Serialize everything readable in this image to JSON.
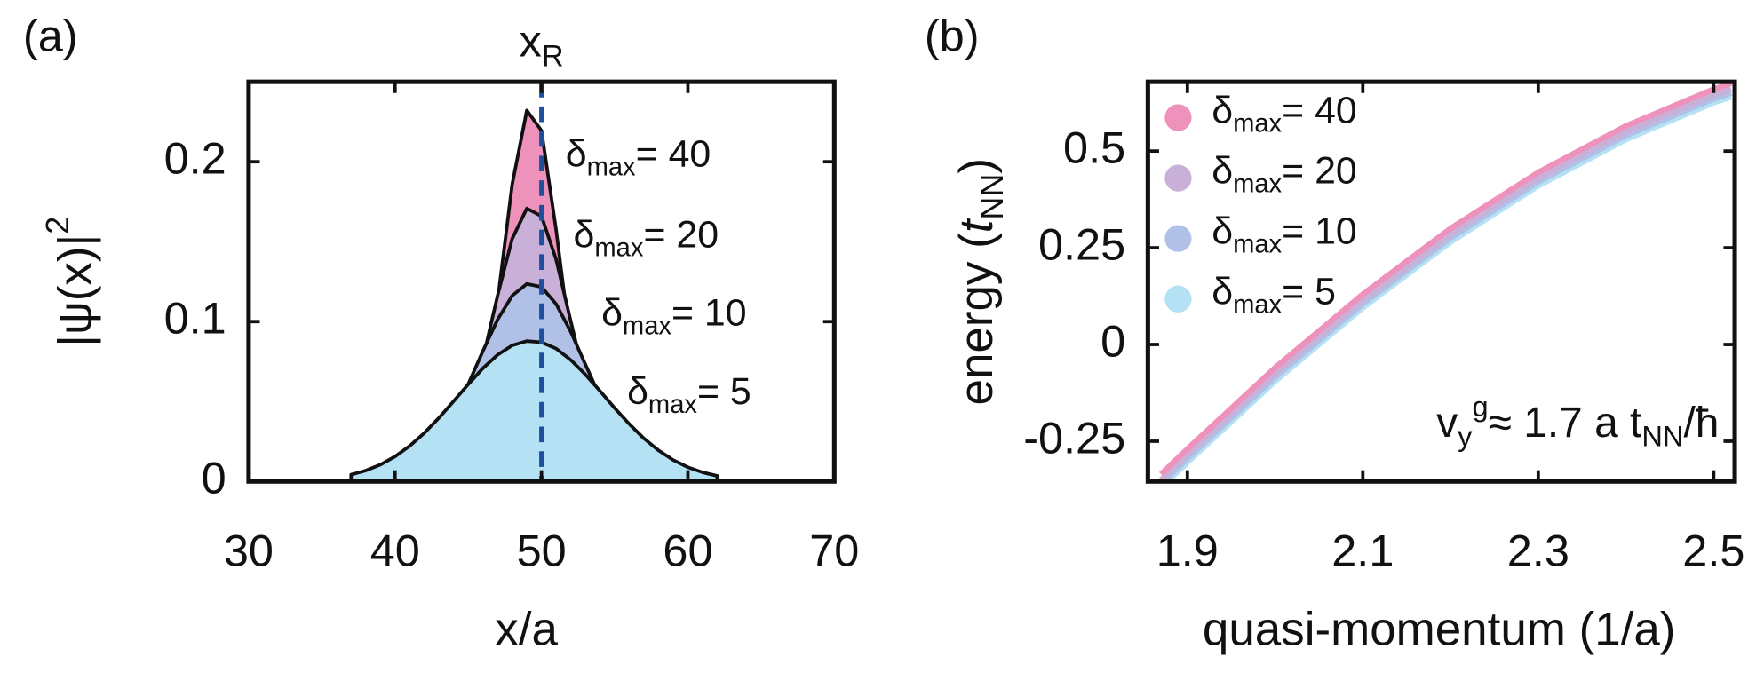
{
  "chart_data": [
    {
      "type": "area",
      "panel_label": "(a)",
      "x_label": "x/a",
      "y_label": {
        "main": "|ψ(x)|",
        "sup": "2"
      },
      "xlim": [
        30,
        70
      ],
      "xticks": [
        30,
        40,
        50,
        60,
        70
      ],
      "ylim": [
        0,
        0.25
      ],
      "yticks": [
        0,
        0.1,
        0.2
      ],
      "reference_line": {
        "x": 50,
        "label": {
          "main": "x",
          "sub": "R"
        },
        "color": "#1f4e9c"
      },
      "x": [
        37,
        38,
        39,
        40,
        41,
        42,
        43,
        44,
        45,
        46,
        47,
        48,
        49,
        50,
        51,
        52,
        53,
        54,
        55,
        56,
        57,
        58,
        59,
        60,
        61,
        62
      ],
      "series": [
        {
          "name": {
            "main": "δ",
            "sub": "max",
            "rest": "= 40"
          },
          "color": "#ee92bb",
          "values": [
            0,
            0,
            0,
            0,
            0,
            0,
            0.001,
            0.0047,
            0.018,
            0.0518,
            0.1127,
            0.1858,
            0.2321,
            0.2195,
            0.1574,
            0.0854,
            0.0351,
            0.0109,
            0.0026,
            0.0005,
            0,
            0,
            0,
            0,
            0,
            0
          ]
        },
        {
          "name": {
            "main": "δ",
            "sub": "max",
            "rest": "= 20"
          },
          "color": "#c9b0d8",
          "values": [
            0,
            0,
            0.0001,
            0.0003,
            0.001,
            0.0033,
            0.0091,
            0.0215,
            0.0437,
            0.0767,
            0.1162,
            0.1518,
            0.1708,
            0.166,
            0.1389,
            0.1003,
            0.0623,
            0.0335,
            0.0155,
            0.0062,
            0.0021,
            0.0006,
            0.0002,
            0,
            0,
            0
          ]
        },
        {
          "name": {
            "main": "δ",
            "sub": "max",
            "rest": "= 10"
          },
          "color": "#b1c0e6",
          "values": [
            0.0004,
            0.0009,
            0.0021,
            0.0044,
            0.0088,
            0.016,
            0.0269,
            0.042,
            0.0609,
            0.0816,
            0.1012,
            0.1162,
            0.1236,
            0.1217,
            0.111,
            0.0937,
            0.0732,
            0.053,
            0.0355,
            0.0221,
            0.0127,
            0.0067,
            0.0033,
            0.0015,
            0.0006,
            0.0003
          ]
        },
        {
          "name": {
            "main": "δ",
            "sub": "max",
            "rest": "= 5"
          },
          "color": "#b4e1f3",
          "values": [
            0.0043,
            0.0068,
            0.0105,
            0.0156,
            0.0222,
            0.0303,
            0.0398,
            0.0502,
            0.0608,
            0.0708,
            0.0792,
            0.0851,
            0.0878,
            0.0871,
            0.0831,
            0.076,
            0.0669,
            0.0566,
            0.0459,
            0.0359,
            0.0269,
            0.0194,
            0.0134,
            0.0089,
            0.0057,
            0.0035
          ]
        }
      ]
    },
    {
      "type": "line",
      "panel_label": "(b)",
      "x_label": "quasi-momentum (1/a)",
      "y_label": {
        "pre": "energy (",
        "italic": "t",
        "sub": "NN",
        "post": ")"
      },
      "xlim": [
        1.855,
        2.524
      ],
      "xticks": [
        1.9,
        2.1,
        2.3,
        2.5
      ],
      "ylim": [
        -0.354,
        0.679
      ],
      "yticks": [
        -0.25,
        0,
        0.25,
        0.5
      ],
      "legend": "upper left",
      "annotation": {
        "v": "v",
        "sub": "y",
        "sup": "g",
        "rest": "≈ 1.7 a t",
        "sub2": "NN",
        "end": "/ħ"
      },
      "x": [
        1.87,
        1.9,
        2.0,
        2.1,
        2.2,
        2.3,
        2.4,
        2.5,
        2.52
      ],
      "series": [
        {
          "name": {
            "main": "δ",
            "sub": "max",
            "rest": "= 40"
          },
          "color": "#ee92bb",
          "values": [
            -0.335,
            -0.27,
            -0.06,
            0.13,
            0.3,
            0.445,
            0.565,
            0.66,
            0.675
          ]
        },
        {
          "name": {
            "main": "δ",
            "sub": "max",
            "rest": "= 20"
          },
          "color": "#c9b0d8",
          "values": [
            -0.35,
            -0.285,
            -0.075,
            0.115,
            0.285,
            0.43,
            0.55,
            0.645,
            0.66
          ]
        },
        {
          "name": {
            "main": "δ",
            "sub": "max",
            "rest": "= 10"
          },
          "color": "#b1c0e6",
          "values": [
            -0.36,
            -0.295,
            -0.085,
            0.105,
            0.275,
            0.42,
            0.54,
            0.635,
            0.65
          ]
        },
        {
          "name": {
            "main": "δ",
            "sub": "max",
            "rest": "= 5"
          },
          "color": "#b4e1f3",
          "values": [
            -0.37,
            -0.305,
            -0.095,
            0.095,
            0.265,
            0.41,
            0.53,
            0.625,
            0.64
          ]
        }
      ]
    }
  ]
}
